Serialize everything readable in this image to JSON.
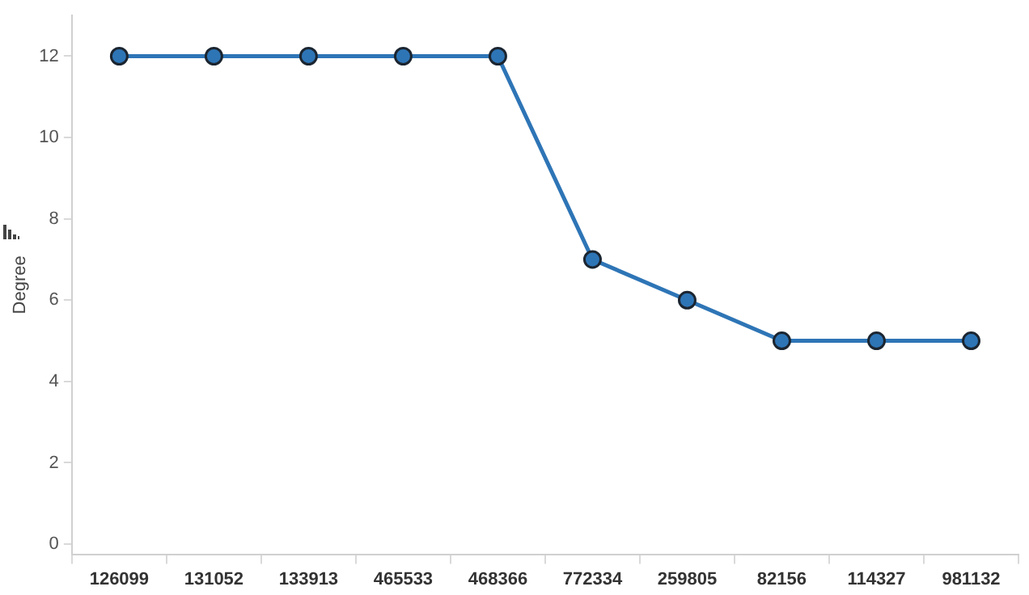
{
  "chart_data": {
    "type": "line",
    "ylabel": "Degree",
    "categories": [
      "126099",
      "131052",
      "133913",
      "465533",
      "468366",
      "772334",
      "259805",
      "82156",
      "114327",
      "981132"
    ],
    "series": [
      {
        "color": "#2e75b6",
        "values": [
          12,
          12,
          12,
          12,
          12,
          7,
          6,
          5,
          5,
          5
        ]
      }
    ],
    "ylim": [
      -0.25,
      13
    ],
    "yticks": [
      0,
      2,
      4,
      6,
      8,
      10,
      12
    ],
    "marker": "circle",
    "line_style": "solid"
  }
}
